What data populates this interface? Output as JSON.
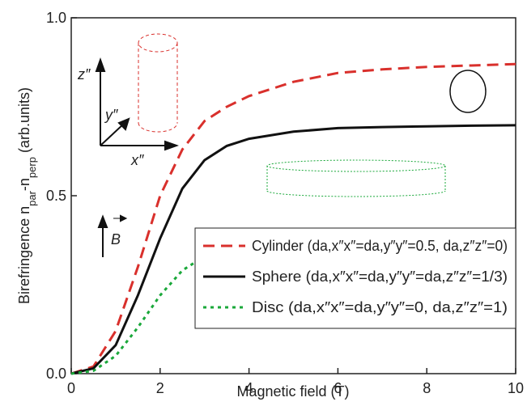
{
  "chart_data": {
    "type": "line",
    "ylabel": [
      {
        "text": "Birefringence  n"
      },
      {
        "text": "par",
        "sub": true
      },
      {
        "text": "-n"
      },
      {
        "text": "perp",
        "sub": true
      },
      {
        "text": " (arb.units)"
      }
    ],
    "xlabel": "Magnetic field (T)",
    "x": [
      0,
      0.5,
      1,
      1.5,
      2,
      2.5,
      3,
      3.5,
      4,
      5,
      6,
      7,
      8,
      9,
      10
    ],
    "series": [
      {
        "name": "Cylinder (da,x″x″=da,y″y″=0.5, da,z″z″=0)",
        "color": "#d9302c",
        "dash": "dashed",
        "values": [
          0,
          0.02,
          0.12,
          0.3,
          0.5,
          0.63,
          0.71,
          0.75,
          0.78,
          0.82,
          0.845,
          0.855,
          0.862,
          0.866,
          0.87
        ]
      },
      {
        "name": "Sphere (da,x″x″=da,y″y″=da,z″z″=1/3)",
        "color": "#111111",
        "dash": "solid",
        "values": [
          0,
          0.015,
          0.08,
          0.22,
          0.38,
          0.52,
          0.6,
          0.64,
          0.66,
          0.68,
          0.69,
          0.693,
          0.695,
          0.697,
          0.698
        ]
      },
      {
        "name": "Disc (da,x″x″=da,y″y″=0, da,z″z″=1)",
        "color": "#1aa83a",
        "dash": "dotted",
        "values": [
          0,
          0.008,
          0.05,
          0.13,
          0.22,
          0.29,
          0.33,
          0.355,
          0.37,
          0.385,
          0.393,
          0.397,
          0.4,
          0.402,
          0.405
        ]
      }
    ],
    "xlim": [
      0,
      10
    ],
    "xticks": [
      0,
      2,
      4,
      6,
      8,
      10
    ],
    "ylim": [
      0,
      1
    ],
    "yticks": [
      {
        "value": 0,
        "label": "0.0"
      },
      0.5,
      {
        "value": 1,
        "label": "1.0"
      }
    ],
    "legend": "lower right",
    "annotations": {
      "z": "z″",
      "y": "y″",
      "x": "x″",
      "field": "B"
    }
  }
}
